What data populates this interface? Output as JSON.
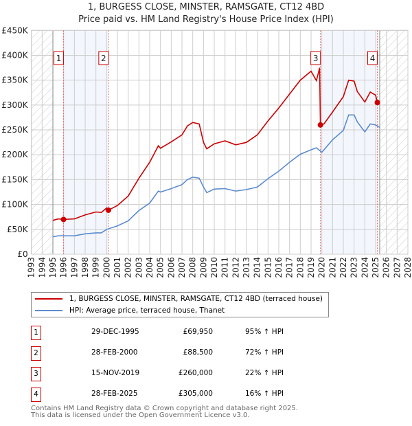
{
  "chart_data": {
    "type": "line",
    "title": "1, BURGESS CLOSE, MINSTER, RAMSGATE, CT12 4BD",
    "subtitle": "Price paid vs. HM Land Registry's House Price Index (HPI)",
    "xlim": [
      1993,
      2028
    ],
    "ylim": [
      0,
      450000
    ],
    "grid": true,
    "x_ticks": [
      "1993",
      "1994",
      "1995",
      "1996",
      "1997",
      "1998",
      "1999",
      "2000",
      "2001",
      "2002",
      "2003",
      "2004",
      "2005",
      "2006",
      "2007",
      "2008",
      "2009",
      "2010",
      "2011",
      "2012",
      "2013",
      "2014",
      "2015",
      "2016",
      "2017",
      "2018",
      "2019",
      "2020",
      "2021",
      "2022",
      "2023",
      "2024",
      "2025",
      "2026",
      "2027",
      "2028"
    ],
    "y_ticks": [
      {
        "v": 0,
        "label": "£0"
      },
      {
        "v": 50000,
        "label": "£50K"
      },
      {
        "v": 100000,
        "label": "£100K"
      },
      {
        "v": 150000,
        "label": "£150K"
      },
      {
        "v": 200000,
        "label": "£200K"
      },
      {
        "v": 250000,
        "label": "£250K"
      },
      {
        "v": 300000,
        "label": "£300K"
      },
      {
        "v": 350000,
        "label": "£350K"
      },
      {
        "v": 400000,
        "label": "£400K"
      },
      {
        "v": 450000,
        "label": "£450K"
      }
    ],
    "data_range": [
      1995,
      2025.38
    ],
    "shaded_ranges": [
      [
        1995.99,
        2000.16
      ],
      [
        2019.87,
        2025.16
      ]
    ],
    "series": [
      {
        "name": "1, BURGESS CLOSE, MINSTER, RAMSGATE, CT12 4BD (terraced house)",
        "color": "#cc0000",
        "x": [
          1995,
          1995.5,
          1996,
          1997,
          1998,
          1999,
          1999.5,
          2000,
          2000.16,
          2001,
          2002,
          2003,
          2004,
          2004.8,
          2005,
          2006,
          2007,
          2007.5,
          2008,
          2008.6,
          2009,
          2009.3,
          2010,
          2011,
          2012,
          2013,
          2014,
          2015,
          2016,
          2017,
          2018,
          2019,
          2019.5,
          2019.8,
          2019.87,
          2020.2,
          2021,
          2022,
          2022.5,
          2023,
          2023.3,
          2024,
          2024.5,
          2025,
          2025.16,
          2025.38
        ],
        "y": [
          68000,
          71000,
          70000,
          71000,
          79000,
          85000,
          84000,
          93000,
          88500,
          98000,
          117000,
          153000,
          185000,
          218000,
          213000,
          226000,
          240000,
          258000,
          265000,
          262000,
          225000,
          212000,
          222000,
          228000,
          220000,
          225000,
          240000,
          268000,
          294000,
          322000,
          350000,
          368000,
          349000,
          375000,
          260000,
          262000,
          286000,
          317000,
          350000,
          348000,
          327000,
          306000,
          326000,
          320000,
          305000,
          305000
        ]
      },
      {
        "name": "HPI: Average price, terraced house, Thanet",
        "color": "#5b8bd0",
        "x": [
          1995,
          1995.5,
          1996,
          1997,
          1998,
          1999,
          1999.5,
          2000,
          2001,
          2002,
          2003,
          2004,
          2004.8,
          2005,
          2006,
          2007,
          2007.5,
          2008,
          2008.6,
          2009,
          2009.3,
          2010,
          2011,
          2012,
          2013,
          2014,
          2015,
          2016,
          2017,
          2018,
          2019,
          2019.5,
          2020,
          2021,
          2022,
          2022.5,
          2023,
          2023.3,
          2024,
          2024.5,
          2025,
          2025.38
        ],
        "y": [
          35000,
          37000,
          37000,
          37000,
          41000,
          43000,
          43000,
          50000,
          57000,
          67000,
          88000,
          103000,
          127000,
          125000,
          132000,
          140000,
          150000,
          155000,
          153000,
          135000,
          124000,
          131000,
          132000,
          127000,
          130000,
          135000,
          152000,
          167000,
          185000,
          201000,
          210000,
          214000,
          205000,
          230000,
          249000,
          280000,
          280000,
          266000,
          246000,
          262000,
          260000,
          255000
        ]
      }
    ],
    "sales": [
      {
        "label": "1",
        "x": 1995.99,
        "y": 69950
      },
      {
        "label": "2",
        "x": 2000.16,
        "y": 88500
      },
      {
        "label": "3",
        "x": 2019.87,
        "y": 260000
      },
      {
        "label": "4",
        "x": 2025.16,
        "y": 305000
      }
    ]
  },
  "legend": {
    "property": "1, BURGESS CLOSE, MINSTER, RAMSGATE, CT12 4BD (terraced house)",
    "hpi": "HPI: Average price, terraced house, Thanet"
  },
  "transactions": [
    {
      "num": "1",
      "date": "29-DEC-1995",
      "price": "£69,950",
      "hpi": "95% ↑ HPI"
    },
    {
      "num": "2",
      "date": "28-FEB-2000",
      "price": "£88,500",
      "hpi": "72% ↑ HPI"
    },
    {
      "num": "3",
      "date": "15-NOV-2019",
      "price": "£260,000",
      "hpi": "22% ↑ HPI"
    },
    {
      "num": "4",
      "date": "28-FEB-2025",
      "price": "£305,000",
      "hpi": "16% ↑ HPI"
    }
  ],
  "footer": {
    "line1": "Contains HM Land Registry data © Crown copyright and database right 2025.",
    "line2": "This data is licensed under the Open Government Licence v3.0."
  }
}
